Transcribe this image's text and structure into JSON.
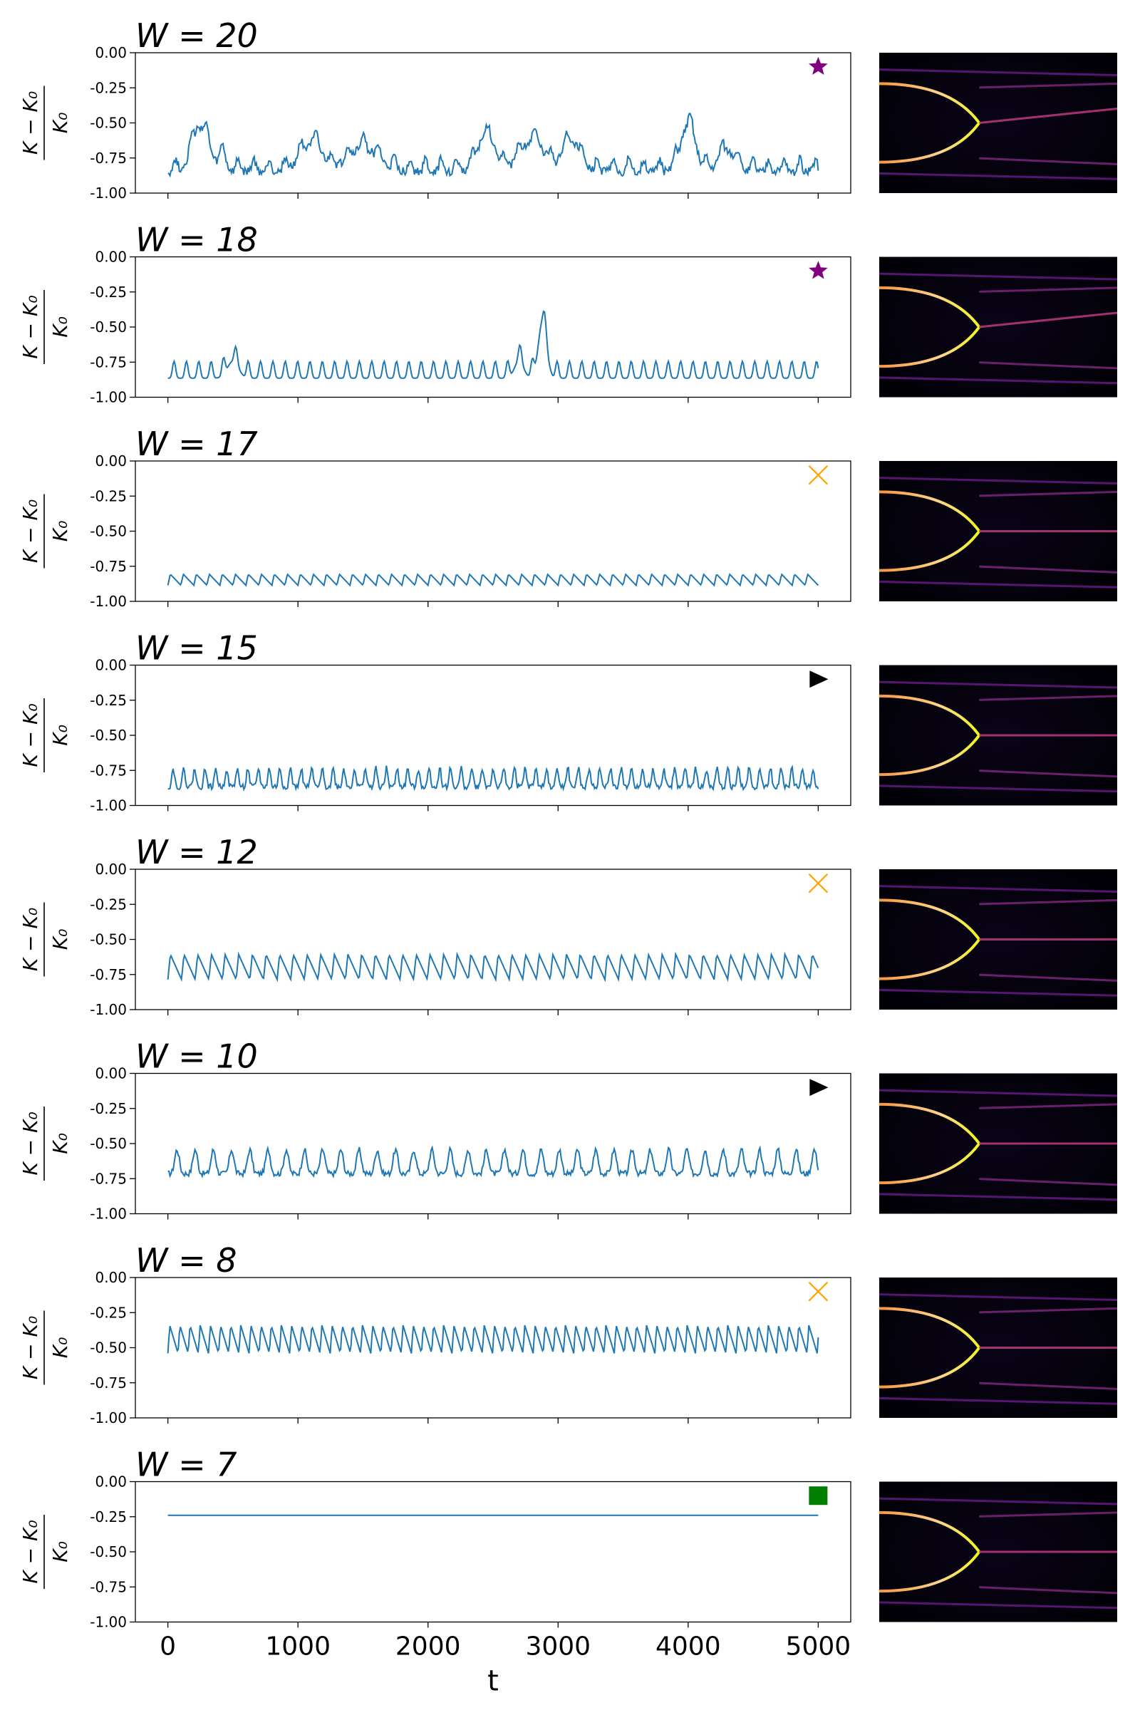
{
  "chart_data": {
    "type": "line",
    "xlabel": "t",
    "ylabel": "(K − K0) / K0",
    "xlim": [
      -250,
      5250
    ],
    "ylim": [
      -1.0,
      0.0
    ],
    "xticks": [
      "0",
      "1000",
      "2000",
      "3000",
      "4000",
      "5000"
    ],
    "yticks": [
      "0.00",
      "-0.25",
      "-0.50",
      "-0.75",
      "-1.00"
    ],
    "panels": [
      {
        "title": "W = 20",
        "W": "20",
        "marker": "star",
        "marker_color": "#800080",
        "regime": "chaotic",
        "baseline": -0.83,
        "amplitude": 0.09,
        "period": 120,
        "bumps": [
          [
            250,
            90,
            0.32
          ],
          [
            420,
            40,
            0.1
          ],
          [
            1100,
            120,
            0.2
          ],
          [
            1500,
            160,
            0.17
          ],
          [
            2450,
            100,
            0.25
          ],
          [
            2800,
            130,
            0.22
          ],
          [
            3100,
            90,
            0.22
          ],
          [
            4000,
            80,
            0.33
          ],
          [
            4300,
            90,
            0.15
          ]
        ]
      },
      {
        "title": "W = 18",
        "W": "18",
        "marker": "star",
        "marker_color": "#800080",
        "regime": "intermittent",
        "baseline": -0.84,
        "amplitude": 0.12,
        "period": 95,
        "bumps": [
          [
            500,
            60,
            0.12
          ],
          [
            2700,
            50,
            0.12
          ],
          [
            2880,
            45,
            0.4
          ]
        ]
      },
      {
        "title": "W = 17",
        "W": "17",
        "marker": "x",
        "marker_color": "#FFA500",
        "regime": "periodic",
        "baseline": -0.87,
        "amplitude": 0.08,
        "period": 100
      },
      {
        "title": "W = 15",
        "W": "15",
        "marker": "triangle",
        "marker_color": "#000000",
        "regime": "quasi-periodic",
        "baseline": -0.84,
        "amplitude": 0.13,
        "period": 82
      },
      {
        "title": "W = 12",
        "W": "12",
        "marker": "x",
        "marker_color": "#FFA500",
        "regime": "periodic",
        "baseline": -0.75,
        "amplitude": 0.18,
        "period": 105
      },
      {
        "title": "W = 10",
        "W": "10",
        "marker": "triangle",
        "marker_color": "#000000",
        "regime": "quasi-periodic",
        "baseline": -0.68,
        "amplitude": 0.17,
        "period": 140
      },
      {
        "title": "W = 8",
        "W": "8",
        "marker": "x",
        "marker_color": "#FFA500",
        "regime": "periodic",
        "baseline": -0.5,
        "amplitude": 0.2,
        "period": 78
      },
      {
        "title": "W = 7",
        "W": "7",
        "marker": "square",
        "marker_color": "#008000",
        "regime": "steady",
        "baseline": -0.24,
        "amplitude": 0.0,
        "period": 0
      }
    ],
    "series_color": "#1f77b4",
    "grid": false
  }
}
